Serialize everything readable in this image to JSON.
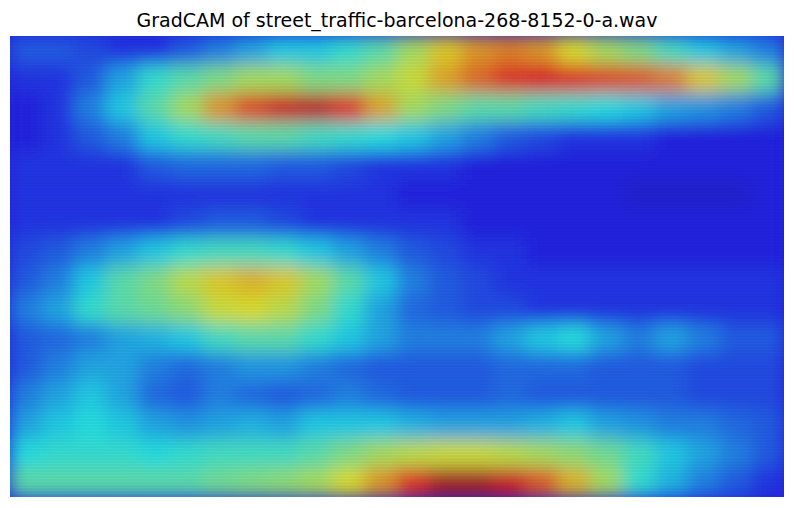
{
  "chart_data": {
    "type": "heatmap",
    "title": "GradCAM of street_traffic-barcelona-268-8152-0-a.wav",
    "color": "jet",
    "tick_labels": false,
    "zlim": [
      0,
      1
    ],
    "cells": [
      [
        0.2,
        0.2,
        0.18,
        0.15,
        0.15,
        0.2,
        0.25,
        0.3,
        0.35,
        0.35,
        0.4,
        0.45,
        0.55,
        0.65,
        0.72,
        0.75,
        0.72,
        0.62,
        0.55,
        0.5,
        0.42,
        0.35,
        0.3,
        0.25
      ],
      [
        0.15,
        0.15,
        0.2,
        0.3,
        0.4,
        0.45,
        0.5,
        0.55,
        0.55,
        0.5,
        0.5,
        0.55,
        0.6,
        0.7,
        0.78,
        0.85,
        0.88,
        0.85,
        0.82,
        0.8,
        0.75,
        0.65,
        0.55,
        0.45
      ],
      [
        0.12,
        0.15,
        0.25,
        0.35,
        0.45,
        0.55,
        0.72,
        0.82,
        0.9,
        0.92,
        0.85,
        0.7,
        0.55,
        0.5,
        0.45,
        0.45,
        0.42,
        0.4,
        0.38,
        0.35,
        0.3,
        0.28,
        0.25,
        0.2
      ],
      [
        0.12,
        0.15,
        0.2,
        0.25,
        0.35,
        0.4,
        0.42,
        0.45,
        0.45,
        0.42,
        0.4,
        0.38,
        0.35,
        0.3,
        0.25,
        0.2,
        0.18,
        0.15,
        0.15,
        0.15,
        0.12,
        0.12,
        0.12,
        0.12
      ],
      [
        0.15,
        0.15,
        0.15,
        0.15,
        0.2,
        0.22,
        0.22,
        0.22,
        0.2,
        0.2,
        0.18,
        0.15,
        0.15,
        0.15,
        0.12,
        0.12,
        0.12,
        0.12,
        0.12,
        0.12,
        0.12,
        0.12,
        0.12,
        0.12
      ],
      [
        0.15,
        0.15,
        0.15,
        0.15,
        0.15,
        0.15,
        0.15,
        0.15,
        0.15,
        0.15,
        0.15,
        0.15,
        0.12,
        0.12,
        0.12,
        0.12,
        0.12,
        0.12,
        0.12,
        0.1,
        0.1,
        0.1,
        0.1,
        0.12
      ],
      [
        0.15,
        0.15,
        0.15,
        0.15,
        0.15,
        0.18,
        0.2,
        0.2,
        0.18,
        0.15,
        0.15,
        0.15,
        0.15,
        0.15,
        0.12,
        0.12,
        0.12,
        0.12,
        0.12,
        0.12,
        0.12,
        0.12,
        0.12,
        0.12
      ],
      [
        0.18,
        0.2,
        0.25,
        0.3,
        0.35,
        0.4,
        0.42,
        0.42,
        0.4,
        0.35,
        0.3,
        0.25,
        0.2,
        0.18,
        0.15,
        0.15,
        0.12,
        0.12,
        0.12,
        0.12,
        0.12,
        0.12,
        0.12,
        0.12
      ],
      [
        0.2,
        0.25,
        0.35,
        0.45,
        0.5,
        0.58,
        0.65,
        0.68,
        0.65,
        0.55,
        0.45,
        0.35,
        0.25,
        0.2,
        0.18,
        0.15,
        0.15,
        0.15,
        0.15,
        0.15,
        0.15,
        0.15,
        0.15,
        0.15
      ],
      [
        0.25,
        0.3,
        0.4,
        0.45,
        0.48,
        0.52,
        0.6,
        0.62,
        0.58,
        0.5,
        0.4,
        0.3,
        0.22,
        0.2,
        0.18,
        0.18,
        0.15,
        0.15,
        0.15,
        0.15,
        0.15,
        0.15,
        0.15,
        0.15
      ],
      [
        0.2,
        0.22,
        0.25,
        0.3,
        0.32,
        0.35,
        0.42,
        0.45,
        0.45,
        0.4,
        0.35,
        0.3,
        0.25,
        0.25,
        0.25,
        0.3,
        0.35,
        0.38,
        0.3,
        0.25,
        0.3,
        0.25,
        0.2,
        0.2
      ],
      [
        0.2,
        0.25,
        0.3,
        0.3,
        0.25,
        0.22,
        0.25,
        0.28,
        0.28,
        0.25,
        0.22,
        0.2,
        0.2,
        0.2,
        0.2,
        0.22,
        0.22,
        0.22,
        0.2,
        0.2,
        0.2,
        0.18,
        0.18,
        0.18
      ],
      [
        0.25,
        0.3,
        0.35,
        0.3,
        0.22,
        0.2,
        0.25,
        0.22,
        0.2,
        0.22,
        0.25,
        0.22,
        0.2,
        0.2,
        0.2,
        0.22,
        0.2,
        0.2,
        0.2,
        0.2,
        0.2,
        0.18,
        0.18,
        0.18
      ],
      [
        0.3,
        0.35,
        0.38,
        0.35,
        0.3,
        0.28,
        0.3,
        0.32,
        0.3,
        0.35,
        0.35,
        0.35,
        0.32,
        0.3,
        0.3,
        0.3,
        0.32,
        0.35,
        0.3,
        0.28,
        0.25,
        0.25,
        0.22,
        0.2
      ],
      [
        0.38,
        0.4,
        0.4,
        0.4,
        0.38,
        0.4,
        0.42,
        0.42,
        0.42,
        0.45,
        0.5,
        0.55,
        0.58,
        0.6,
        0.6,
        0.58,
        0.55,
        0.52,
        0.48,
        0.42,
        0.35,
        0.3,
        0.25,
        0.2
      ],
      [
        0.45,
        0.45,
        0.45,
        0.45,
        0.45,
        0.45,
        0.48,
        0.5,
        0.52,
        0.55,
        0.62,
        0.72,
        0.85,
        0.95,
        0.95,
        0.9,
        0.8,
        0.68,
        0.55,
        0.4,
        0.32,
        0.25,
        0.2,
        0.15
      ]
    ]
  }
}
